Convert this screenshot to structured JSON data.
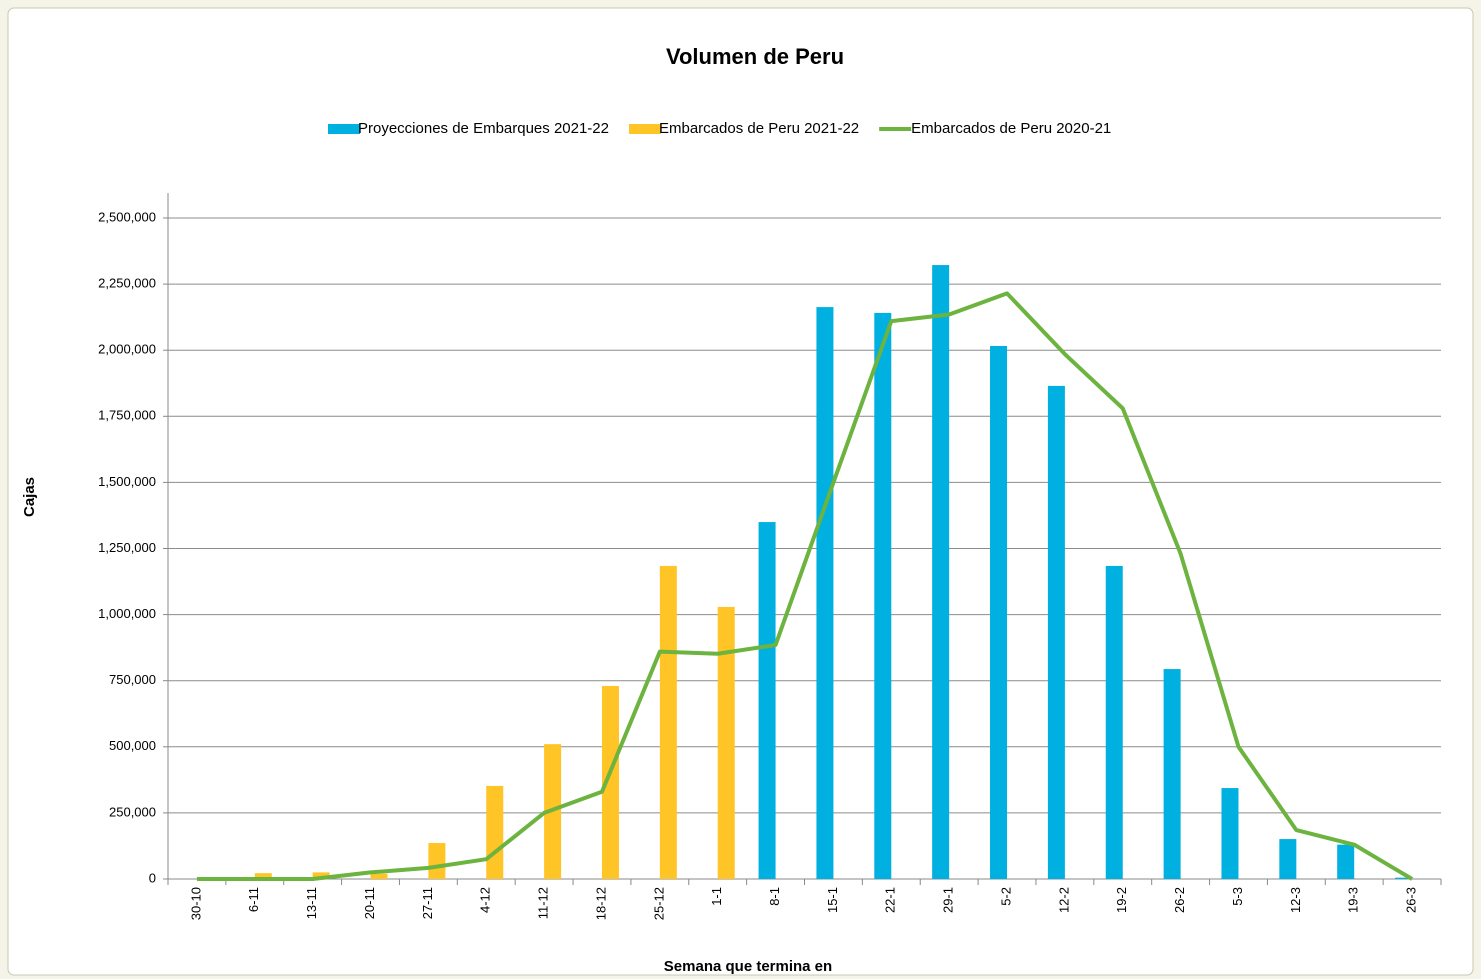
{
  "chart_data": {
    "type": "bar",
    "title": "Volumen de Peru",
    "x_label": "Semana que termina en",
    "y_label": "Cajas",
    "categories": [
      "30-10",
      "6-11",
      "13-11",
      "20-11",
      "27-11",
      "4-12",
      "11-12",
      "18-12",
      "25-12",
      "1-1",
      "8-1",
      "15-1",
      "22-1",
      "29-1",
      "5-2",
      "12-2",
      "19-2",
      "26-2",
      "5-3",
      "12-3",
      "19-3",
      "26-3"
    ],
    "series": [
      {
        "name": "Proyecciones de Embarques 2021-22",
        "type": "bar",
        "color": "#00b0e0",
        "values": [
          null,
          null,
          null,
          null,
          null,
          null,
          null,
          null,
          null,
          null,
          1350000,
          2163000,
          2141000,
          2322000,
          2016000,
          1865000,
          1184000,
          794000,
          344000,
          151000,
          130000,
          5000
        ]
      },
      {
        "name": "Embarcados de Peru 2021-22",
        "type": "bar",
        "color": "#ffc425",
        "values": [
          0,
          22000,
          25000,
          20000,
          136000,
          352000,
          510000,
          730000,
          1184000,
          1029000,
          null,
          null,
          null,
          null,
          null,
          null,
          null,
          null,
          null,
          null,
          null,
          null
        ]
      },
      {
        "name": "Embarcados de Peru 2020-21",
        "type": "line",
        "color": "#6db33f",
        "values": [
          0,
          0,
          0,
          25000,
          42000,
          75000,
          250000,
          330000,
          860000,
          852000,
          885000,
          1500000,
          2110000,
          2135000,
          2215000,
          1985000,
          1780000,
          1230000,
          500000,
          185000,
          130000,
          0
        ]
      }
    ],
    "ylim": [
      0,
      2500000
    ],
    "yticks": [
      0,
      {
        "value": 250000,
        "label": "250,000"
      },
      {
        "value": 500000,
        "label": "500,000"
      },
      {
        "value": 750000,
        "label": "750,000"
      },
      {
        "value": 1000000,
        "label": "1,000,000"
      },
      {
        "value": 1250000,
        "label": "1,250,000"
      },
      {
        "value": 1500000,
        "label": "1,500,000"
      },
      {
        "value": 1750000,
        "label": "1,750,000"
      },
      {
        "value": 2000000,
        "label": "2,000,000"
      },
      {
        "value": 2250000,
        "label": "2,250,000"
      },
      {
        "value": 2500000,
        "label": "2,500,000"
      }
    ],
    "grid": true,
    "legend": "top"
  }
}
